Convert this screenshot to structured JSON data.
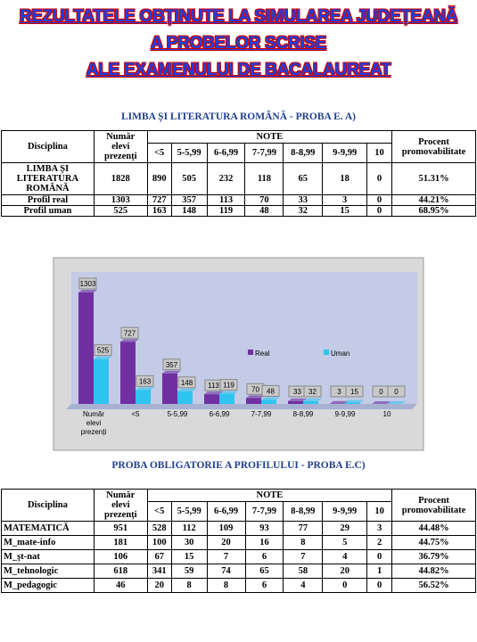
{
  "header": {
    "title_lines": [
      "REZULTATELE OBȚINUTE LA SIMULAREA JUDEȚEANĂ",
      "A PROBELOR SCRISE",
      "ALE EXAMENULUI DE BACALAUREAT"
    ]
  },
  "table1": {
    "title": "LIMBA ȘI LITERATURA ROMÂNĂ -  PROBA E. A)",
    "headers": {
      "discipline": "Disciplina",
      "present": "Număr elevi prezenți",
      "notes": "NOTE",
      "grades": [
        "<5",
        "5-5,99",
        "6-6,99",
        "7-7,99",
        "8-8,99",
        "9-9,99",
        "10"
      ],
      "percent": "Procent promovabilitate"
    },
    "rows": [
      [
        "LIMBA ȘI LITERATURA ROMÂNĂ",
        "1828",
        "890",
        "505",
        "232",
        "118",
        "65",
        "18",
        "0",
        "51.31%"
      ],
      [
        "Profil real",
        "1303",
        "727",
        "357",
        "113",
        "70",
        "33",
        "3",
        "0",
        "44.21%"
      ],
      [
        "Profil uman",
        "525",
        "163",
        "148",
        "119",
        "48",
        "32",
        "15",
        "0",
        "68.95%"
      ]
    ]
  },
  "chart_data": {
    "type": "bar",
    "categories": [
      "Număr elevi prezenți",
      "<5",
      "5-5,99",
      "6-6,99",
      "7-7,99",
      "8-8,99",
      "9-9,99",
      "10"
    ],
    "series": [
      {
        "name": "Real",
        "color": "#7030a0",
        "values": [
          1303,
          727,
          357,
          113,
          70,
          33,
          3,
          0
        ]
      },
      {
        "name": "Uman",
        "color": "#2fc4f0",
        "values": [
          525,
          163,
          148,
          119,
          48,
          32,
          15,
          0
        ]
      }
    ]
  },
  "table2": {
    "title": "PROBA OBLIGATORIE A PROFILULUI - PROBA E.C)",
    "headers": {
      "discipline": "Disciplina",
      "present": "Număr elevi prezenți",
      "notes": "NOTE",
      "grades": [
        "<5",
        "5-5,99",
        "6-6,99",
        "7-7,99",
        "8-8,99",
        "9-9,99",
        "10"
      ],
      "percent": "Procent promovabilitate"
    },
    "rows": [
      [
        "MATEMATICĂ",
        "951",
        "528",
        "112",
        "109",
        "93",
        "77",
        "29",
        "3",
        "44.48%"
      ],
      [
        "M_mate-info",
        "181",
        "100",
        "30",
        "20",
        "16",
        "8",
        "5",
        "2",
        "44.75%"
      ],
      [
        "M_şt-nat",
        "106",
        "67",
        "15",
        "7",
        "6",
        "7",
        "4",
        "0",
        "36.79%"
      ],
      [
        "M_tehnologic",
        "618",
        "341",
        "59",
        "74",
        "65",
        "58",
        "20",
        "1",
        "44.82%"
      ],
      [
        "M_pedagogic",
        "46",
        "20",
        "8",
        "8",
        "6",
        "4",
        "0",
        "0",
        "56.52%"
      ]
    ]
  }
}
